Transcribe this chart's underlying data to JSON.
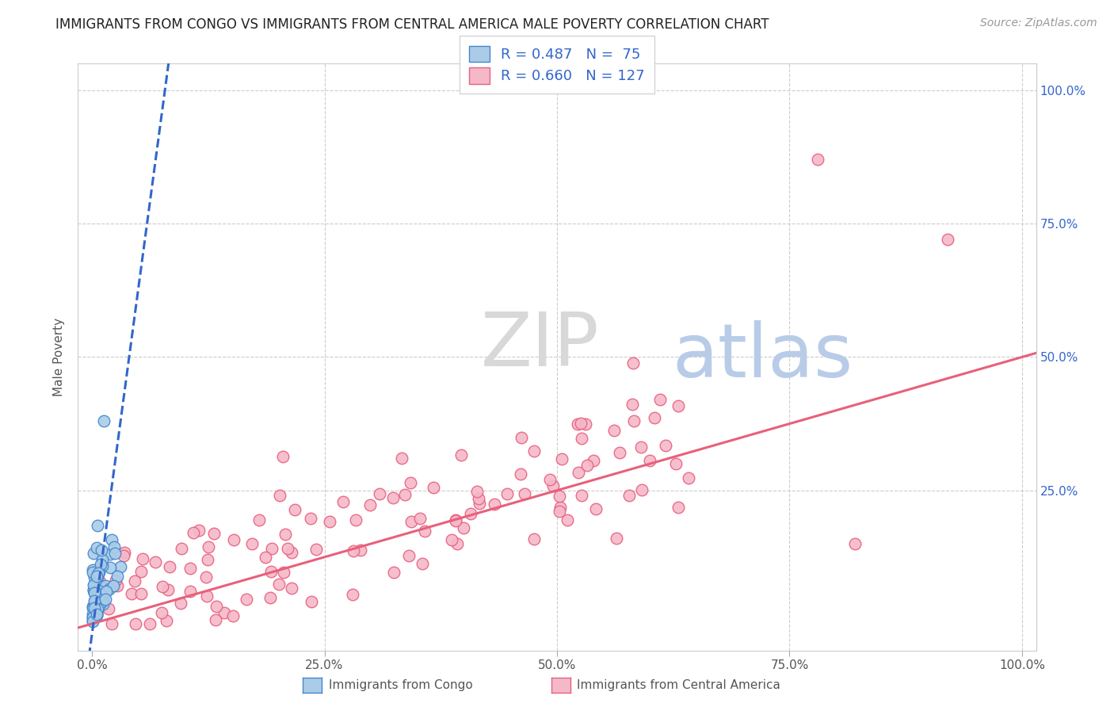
{
  "title": "IMMIGRANTS FROM CONGO VS IMMIGRANTS FROM CENTRAL AMERICA MALE POVERTY CORRELATION CHART",
  "source": "Source: ZipAtlas.com",
  "ylabel": "Male Poverty",
  "congo_color": "#aacce8",
  "congo_edge_color": "#4488cc",
  "central_america_color": "#f5b8c8",
  "central_america_edge_color": "#e86080",
  "congo_line_color": "#3366cc",
  "central_america_line_color": "#e8607a",
  "legend_box_color_congo": "#aacce8",
  "legend_box_color_ca": "#f5b8c8",
  "R_congo": 0.487,
  "N_congo": 75,
  "R_ca": 0.66,
  "N_ca": 127,
  "watermark_zip": "ZIP",
  "watermark_atlas": "atlas",
  "background_color": "#ffffff",
  "grid_color": "#cccccc"
}
